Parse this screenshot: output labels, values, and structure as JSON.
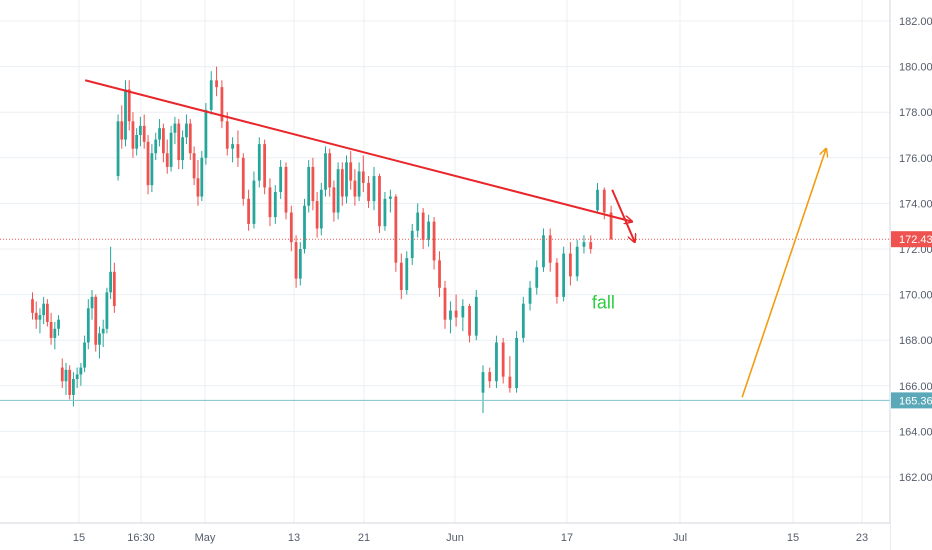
{
  "chart_data": {
    "type": "candlestick",
    "title": "",
    "xlabel": "",
    "ylabel": "",
    "ylim": [
      160.0,
      183.0
    ],
    "y_ticks": [
      "162.00",
      "164.00",
      "166.00",
      "168.00",
      "170.00",
      "172.00",
      "174.00",
      "176.00",
      "178.00",
      "180.00",
      "182.00"
    ],
    "x_ticks": [
      "15",
      "16:30",
      "May",
      "13",
      "21",
      "Jun",
      "17",
      "Jul",
      "15",
      "23"
    ],
    "grid": true,
    "last_price": {
      "label": "172.43",
      "value": 172.43
    },
    "support_level": {
      "label": "165.36",
      "value": 165.36
    },
    "annotations": [
      {
        "type": "trendline",
        "from": [
          0.1,
          179.4
        ],
        "to": [
          6.4,
          173.2
        ]
      },
      {
        "type": "arrow",
        "from": [
          6.4,
          174.6
        ],
        "to": [
          6.6,
          172.3
        ]
      },
      {
        "type": "arrow",
        "from": [
          7.55,
          165.5
        ],
        "to": [
          8.48,
          176.4
        ]
      },
      {
        "type": "text",
        "text": "fall",
        "at": [
          6.22,
          169.4
        ]
      }
    ],
    "candles": [
      {
        "x": -0.75,
        "o": 169.8,
        "h": 170.1,
        "l": 168.9,
        "c": 169.2
      },
      {
        "x": -0.69,
        "o": 169.2,
        "h": 169.7,
        "l": 168.5,
        "c": 168.9
      },
      {
        "x": -0.63,
        "o": 168.9,
        "h": 169.4,
        "l": 168.3,
        "c": 169.1
      },
      {
        "x": -0.57,
        "o": 169.1,
        "h": 169.9,
        "l": 168.7,
        "c": 169.6
      },
      {
        "x": -0.51,
        "o": 169.6,
        "h": 169.8,
        "l": 168.6,
        "c": 168.8
      },
      {
        "x": -0.45,
        "o": 168.8,
        "h": 169.2,
        "l": 167.8,
        "c": 168.1
      },
      {
        "x": -0.39,
        "o": 168.1,
        "h": 168.8,
        "l": 167.6,
        "c": 168.5
      },
      {
        "x": -0.33,
        "o": 168.5,
        "h": 169.1,
        "l": 168.2,
        "c": 168.9
      },
      {
        "x": -0.27,
        "o": 166.8,
        "h": 167.2,
        "l": 165.9,
        "c": 166.2
      },
      {
        "x": -0.21,
        "o": 166.2,
        "h": 167.0,
        "l": 165.6,
        "c": 166.7
      },
      {
        "x": -0.15,
        "o": 166.7,
        "h": 166.9,
        "l": 165.4,
        "c": 165.6
      },
      {
        "x": -0.09,
        "o": 165.6,
        "h": 166.6,
        "l": 165.1,
        "c": 166.3
      },
      {
        "x": -0.03,
        "o": 166.3,
        "h": 166.8,
        "l": 165.9,
        "c": 166.5
      },
      {
        "x": 0.03,
        "o": 166.5,
        "h": 167.0,
        "l": 166.0,
        "c": 166.8
      },
      {
        "x": 0.09,
        "o": 166.8,
        "h": 168.2,
        "l": 166.6,
        "c": 167.9
      },
      {
        "x": 0.15,
        "o": 167.9,
        "h": 169.8,
        "l": 167.6,
        "c": 169.4
      },
      {
        "x": 0.21,
        "o": 169.4,
        "h": 170.2,
        "l": 168.9,
        "c": 169.9
      },
      {
        "x": 0.27,
        "o": 169.9,
        "h": 170.0,
        "l": 167.5,
        "c": 167.8
      },
      {
        "x": 0.33,
        "o": 167.8,
        "h": 168.6,
        "l": 167.2,
        "c": 168.3
      },
      {
        "x": 0.39,
        "o": 168.3,
        "h": 168.9,
        "l": 167.7,
        "c": 168.5
      },
      {
        "x": 0.45,
        "o": 168.5,
        "h": 170.3,
        "l": 168.3,
        "c": 170.1
      },
      {
        "x": 0.51,
        "o": 170.1,
        "h": 172.1,
        "l": 169.8,
        "c": 171.0
      },
      {
        "x": 0.57,
        "o": 171.0,
        "h": 171.4,
        "l": 169.2,
        "c": 169.5
      },
      {
        "x": 0.63,
        "o": 175.2,
        "h": 177.9,
        "l": 175.0,
        "c": 177.6
      },
      {
        "x": 0.69,
        "o": 177.6,
        "h": 178.3,
        "l": 176.4,
        "c": 176.8
      },
      {
        "x": 0.75,
        "o": 176.8,
        "h": 179.4,
        "l": 176.5,
        "c": 179.0
      },
      {
        "x": 0.81,
        "o": 179.0,
        "h": 179.4,
        "l": 177.2,
        "c": 177.6
      },
      {
        "x": 0.87,
        "o": 177.6,
        "h": 178.0,
        "l": 176.0,
        "c": 176.4
      },
      {
        "x": 0.93,
        "o": 176.4,
        "h": 177.3,
        "l": 176.1,
        "c": 177.0
      },
      {
        "x": 0.99,
        "o": 177.0,
        "h": 177.8,
        "l": 176.5,
        "c": 177.4
      },
      {
        "x": 1.05,
        "o": 177.4,
        "h": 177.9,
        "l": 176.4,
        "c": 176.7
      },
      {
        "x": 1.11,
        "o": 176.7,
        "h": 177.0,
        "l": 174.4,
        "c": 174.8
      },
      {
        "x": 1.17,
        "o": 174.8,
        "h": 176.6,
        "l": 174.5,
        "c": 176.2
      },
      {
        "x": 1.23,
        "o": 176.2,
        "h": 177.1,
        "l": 175.9,
        "c": 176.8
      },
      {
        "x": 1.29,
        "o": 176.8,
        "h": 177.7,
        "l": 176.5,
        "c": 177.3
      },
      {
        "x": 1.35,
        "o": 177.3,
        "h": 177.5,
        "l": 175.8,
        "c": 176.2
      },
      {
        "x": 1.41,
        "o": 176.2,
        "h": 176.8,
        "l": 175.3,
        "c": 175.6
      },
      {
        "x": 1.47,
        "o": 175.6,
        "h": 177.4,
        "l": 175.4,
        "c": 177.1
      },
      {
        "x": 1.53,
        "o": 177.1,
        "h": 177.8,
        "l": 176.6,
        "c": 177.5
      },
      {
        "x": 1.59,
        "o": 177.5,
        "h": 177.7,
        "l": 175.5,
        "c": 175.9
      },
      {
        "x": 1.65,
        "o": 175.9,
        "h": 177.2,
        "l": 175.5,
        "c": 176.9
      },
      {
        "x": 1.71,
        "o": 176.9,
        "h": 177.9,
        "l": 176.6,
        "c": 177.5
      },
      {
        "x": 1.77,
        "o": 177.5,
        "h": 177.7,
        "l": 175.9,
        "c": 176.2
      },
      {
        "x": 1.83,
        "o": 176.2,
        "h": 176.5,
        "l": 174.8,
        "c": 175.1
      },
      {
        "x": 1.89,
        "o": 175.1,
        "h": 175.9,
        "l": 173.9,
        "c": 174.3
      },
      {
        "x": 1.95,
        "o": 174.3,
        "h": 176.3,
        "l": 174.1,
        "c": 176.0
      },
      {
        "x": 2.01,
        "o": 176.0,
        "h": 178.4,
        "l": 175.7,
        "c": 178.1
      },
      {
        "x": 2.07,
        "o": 178.1,
        "h": 179.8,
        "l": 177.9,
        "c": 179.4
      },
      {
        "x": 2.13,
        "o": 179.4,
        "h": 180.0,
        "l": 178.7,
        "c": 179.1
      },
      {
        "x": 2.19,
        "o": 179.1,
        "h": 179.4,
        "l": 177.3,
        "c": 177.6
      },
      {
        "x": 2.25,
        "o": 177.6,
        "h": 178.0,
        "l": 176.1,
        "c": 176.4
      },
      {
        "x": 2.31,
        "o": 176.4,
        "h": 176.9,
        "l": 175.8,
        "c": 176.6
      },
      {
        "x": 2.37,
        "o": 176.6,
        "h": 177.2,
        "l": 175.6,
        "c": 176.0
      },
      {
        "x": 2.43,
        "o": 176.0,
        "h": 176.2,
        "l": 173.9,
        "c": 174.2
      },
      {
        "x": 2.49,
        "o": 174.2,
        "h": 174.6,
        "l": 172.8,
        "c": 173.1
      },
      {
        "x": 2.55,
        "o": 173.1,
        "h": 175.4,
        "l": 172.9,
        "c": 175.0
      },
      {
        "x": 2.61,
        "o": 175.0,
        "h": 176.9,
        "l": 174.7,
        "c": 176.6
      },
      {
        "x": 2.67,
        "o": 176.6,
        "h": 176.8,
        "l": 174.4,
        "c": 174.7
      },
      {
        "x": 2.73,
        "o": 174.7,
        "h": 175.1,
        "l": 173.0,
        "c": 173.4
      },
      {
        "x": 2.79,
        "o": 173.4,
        "h": 174.8,
        "l": 173.1,
        "c": 174.5
      },
      {
        "x": 2.85,
        "o": 174.5,
        "h": 175.9,
        "l": 174.2,
        "c": 175.6
      },
      {
        "x": 2.91,
        "o": 175.6,
        "h": 175.8,
        "l": 173.3,
        "c": 173.6
      },
      {
        "x": 2.97,
        "o": 173.6,
        "h": 173.9,
        "l": 171.9,
        "c": 172.3
      },
      {
        "x": 3.03,
        "o": 172.3,
        "h": 172.6,
        "l": 170.3,
        "c": 170.7
      },
      {
        "x": 3.09,
        "o": 170.7,
        "h": 172.3,
        "l": 170.4,
        "c": 172.0
      },
      {
        "x": 3.15,
        "o": 172.0,
        "h": 174.2,
        "l": 171.8,
        "c": 173.9
      },
      {
        "x": 3.21,
        "o": 173.9,
        "h": 175.9,
        "l": 173.6,
        "c": 175.6
      },
      {
        "x": 3.27,
        "o": 175.6,
        "h": 176.0,
        "l": 173.7,
        "c": 174.1
      },
      {
        "x": 3.33,
        "o": 174.1,
        "h": 174.5,
        "l": 172.5,
        "c": 172.9
      },
      {
        "x": 3.39,
        "o": 172.9,
        "h": 174.9,
        "l": 172.6,
        "c": 174.6
      },
      {
        "x": 3.45,
        "o": 174.6,
        "h": 176.5,
        "l": 174.3,
        "c": 176.2
      },
      {
        "x": 3.51,
        "o": 176.2,
        "h": 176.4,
        "l": 174.3,
        "c": 174.7
      },
      {
        "x": 3.57,
        "o": 174.7,
        "h": 175.0,
        "l": 173.2,
        "c": 173.6
      },
      {
        "x": 3.63,
        "o": 173.6,
        "h": 175.8,
        "l": 173.3,
        "c": 175.5
      },
      {
        "x": 3.69,
        "o": 175.5,
        "h": 175.8,
        "l": 173.9,
        "c": 174.3
      },
      {
        "x": 3.75,
        "o": 174.3,
        "h": 176.1,
        "l": 174.0,
        "c": 175.8
      },
      {
        "x": 3.81,
        "o": 175.8,
        "h": 176.3,
        "l": 174.6,
        "c": 175.0
      },
      {
        "x": 3.87,
        "o": 175.0,
        "h": 175.5,
        "l": 173.9,
        "c": 174.3
      },
      {
        "x": 3.93,
        "o": 174.3,
        "h": 175.8,
        "l": 174.1,
        "c": 175.4
      },
      {
        "x": 3.99,
        "o": 175.4,
        "h": 176.1,
        "l": 174.5,
        "c": 174.9
      },
      {
        "x": 4.05,
        "o": 174.9,
        "h": 175.2,
        "l": 173.8,
        "c": 174.1
      },
      {
        "x": 4.11,
        "o": 174.1,
        "h": 175.6,
        "l": 173.7,
        "c": 175.2
      },
      {
        "x": 4.17,
        "o": 175.2,
        "h": 175.3,
        "l": 172.7,
        "c": 173.0
      },
      {
        "x": 4.23,
        "o": 173.0,
        "h": 174.5,
        "l": 172.8,
        "c": 174.2
      },
      {
        "x": 4.29,
        "o": 174.2,
        "h": 174.6,
        "l": 173.6,
        "c": 174.3
      },
      {
        "x": 4.35,
        "o": 174.3,
        "h": 174.4,
        "l": 171.0,
        "c": 171.4
      },
      {
        "x": 4.41,
        "o": 171.4,
        "h": 171.8,
        "l": 169.8,
        "c": 170.2
      },
      {
        "x": 4.47,
        "o": 170.2,
        "h": 171.9,
        "l": 170.0,
        "c": 171.6
      },
      {
        "x": 4.53,
        "o": 171.6,
        "h": 173.1,
        "l": 171.3,
        "c": 172.8
      },
      {
        "x": 4.59,
        "o": 172.8,
        "h": 174.0,
        "l": 172.5,
        "c": 173.6
      },
      {
        "x": 4.65,
        "o": 173.6,
        "h": 173.8,
        "l": 172.0,
        "c": 172.4
      },
      {
        "x": 4.71,
        "o": 172.4,
        "h": 173.5,
        "l": 172.1,
        "c": 173.2
      },
      {
        "x": 4.77,
        "o": 173.2,
        "h": 173.4,
        "l": 171.1,
        "c": 171.5
      },
      {
        "x": 4.83,
        "o": 171.5,
        "h": 171.9,
        "l": 169.9,
        "c": 170.3
      },
      {
        "x": 4.89,
        "o": 170.3,
        "h": 170.6,
        "l": 168.5,
        "c": 168.9
      },
      {
        "x": 4.95,
        "o": 168.9,
        "h": 169.7,
        "l": 168.3,
        "c": 169.3
      },
      {
        "x": 5.01,
        "o": 169.3,
        "h": 170.0,
        "l": 168.6,
        "c": 169.0
      },
      {
        "x": 5.07,
        "o": 169.0,
        "h": 169.8,
        "l": 168.4,
        "c": 169.5
      },
      {
        "x": 5.13,
        "o": 169.5,
        "h": 169.6,
        "l": 167.9,
        "c": 168.2
      },
      {
        "x": 5.19,
        "o": 168.2,
        "h": 170.2,
        "l": 168.0,
        "c": 169.9
      },
      {
        "x": 5.25,
        "o": 165.7,
        "h": 166.9,
        "l": 164.8,
        "c": 166.6
      },
      {
        "x": 5.31,
        "o": 166.6,
        "h": 166.8,
        "l": 165.9,
        "c": 166.2
      },
      {
        "x": 5.37,
        "o": 166.2,
        "h": 168.2,
        "l": 165.9,
        "c": 167.9
      },
      {
        "x": 5.43,
        "o": 167.9,
        "h": 168.1,
        "l": 166.1,
        "c": 166.4
      },
      {
        "x": 5.49,
        "o": 166.4,
        "h": 167.3,
        "l": 165.7,
        "c": 165.9
      },
      {
        "x": 5.55,
        "o": 165.9,
        "h": 168.4,
        "l": 165.7,
        "c": 168.1
      },
      {
        "x": 5.61,
        "o": 168.1,
        "h": 169.9,
        "l": 167.9,
        "c": 169.6
      },
      {
        "x": 5.67,
        "o": 169.6,
        "h": 170.6,
        "l": 169.3,
        "c": 170.3
      },
      {
        "x": 5.73,
        "o": 170.3,
        "h": 171.5,
        "l": 170.0,
        "c": 171.2
      },
      {
        "x": 5.79,
        "o": 171.2,
        "h": 172.9,
        "l": 171.0,
        "c": 172.6
      },
      {
        "x": 5.85,
        "o": 172.6,
        "h": 172.9,
        "l": 171.0,
        "c": 171.4
      },
      {
        "x": 5.91,
        "o": 171.4,
        "h": 171.6,
        "l": 169.6,
        "c": 169.9
      },
      {
        "x": 5.97,
        "o": 169.9,
        "h": 172.1,
        "l": 169.7,
        "c": 171.8
      },
      {
        "x": 6.03,
        "o": 171.8,
        "h": 172.3,
        "l": 170.4,
        "c": 170.8
      },
      {
        "x": 6.09,
        "o": 170.8,
        "h": 172.4,
        "l": 170.6,
        "c": 172.1
      },
      {
        "x": 6.15,
        "o": 172.1,
        "h": 172.6,
        "l": 171.8,
        "c": 172.3
      },
      {
        "x": 6.21,
        "o": 172.3,
        "h": 172.6,
        "l": 171.8,
        "c": 172.0
      },
      {
        "x": 6.27,
        "o": 173.7,
        "h": 174.9,
        "l": 173.6,
        "c": 174.6
      },
      {
        "x": 6.33,
        "o": 174.6,
        "h": 174.7,
        "l": 173.3,
        "c": 173.6
      },
      {
        "x": 6.39,
        "o": 173.6,
        "h": 173.9,
        "l": 172.4,
        "c": 172.43
      }
    ]
  }
}
